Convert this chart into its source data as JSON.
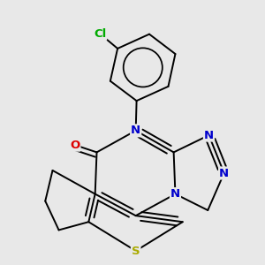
{
  "background_color": "#e8e8e8",
  "bond_color": "#000000",
  "atom_colors": {
    "N": "#0000cc",
    "O": "#dd0000",
    "S": "#aaaa00",
    "Cl": "#00aa00",
    "C": "#000000"
  },
  "figsize": [
    3.0,
    3.0
  ],
  "dpi": 100,
  "lw": 1.4,
  "fontsize": 9.5
}
